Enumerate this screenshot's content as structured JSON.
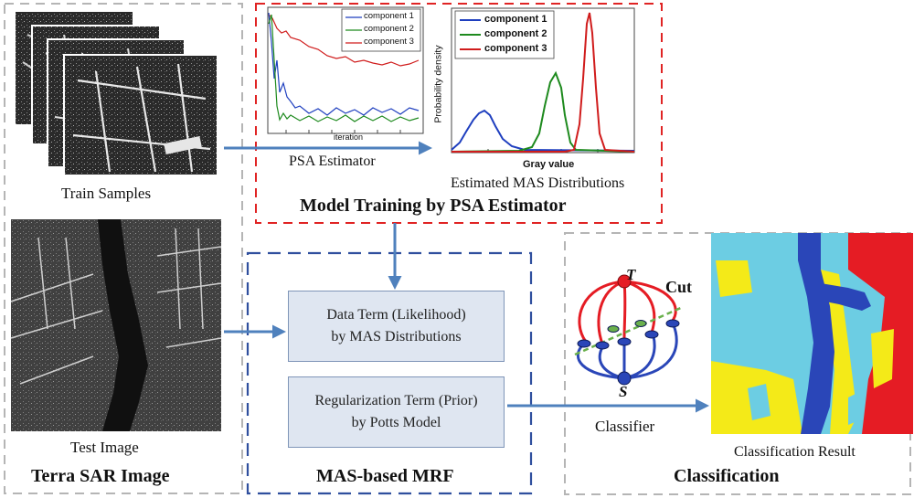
{
  "colors": {
    "gray_dash": "#b5b5b5",
    "red_dash": "#e02424",
    "blue_dash": "#2f4f9e",
    "arrow": "#4f81bd",
    "component_1": "#1f3fbf",
    "component_2": "#1e8a1e",
    "component_3": "#d01c1c",
    "seg_cyan": "#6ccde3",
    "seg_yellow": "#f4ea18",
    "seg_blue": "#2a46b8",
    "seg_red": "#e51c24"
  },
  "left_panel": {
    "train_caption": "Train Samples",
    "test_caption": "Test Image",
    "title": "Terra SAR Image"
  },
  "training_panel": {
    "title": "Model Training by PSA Estimator",
    "psa_caption": "PSA Estimator",
    "mas_caption": "Estimated MAS Distributions",
    "iteration_chart": {
      "xlabel": "iteration",
      "legend": [
        "component 1",
        "component 2",
        "component 3"
      ]
    },
    "density_chart": {
      "xlabel": "Gray value",
      "ylabel": "Probability density",
      "legend": [
        "component 1",
        "component 2",
        "component 3"
      ]
    }
  },
  "mrf_panel": {
    "title": "MAS-based MRF",
    "data_term_line1": "Data Term (Likelihood)",
    "data_term_line2": "by MAS Distributions",
    "reg_term_line1": "Regularization Term (Prior)",
    "reg_term_line2": "by Potts Model"
  },
  "classification_panel": {
    "title": "Classification",
    "classifier_caption": "Classifier",
    "result_caption": "Classification Result",
    "graph_labels": {
      "top": "T",
      "bottom": "S",
      "cut": "Cut"
    }
  },
  "icons": [
    "sar-image-icon",
    "graph-cut-icon",
    "segmentation-map-icon"
  ]
}
